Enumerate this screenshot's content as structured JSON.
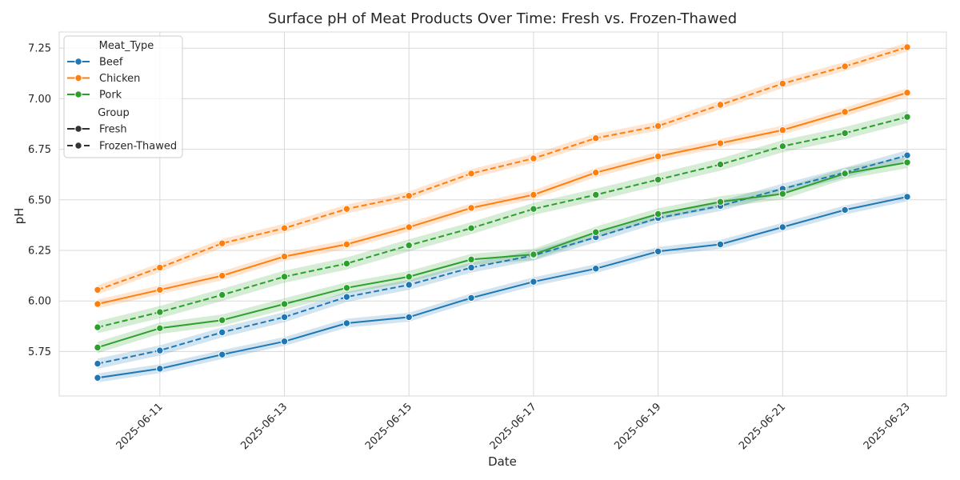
{
  "chart_data": {
    "type": "line",
    "title": "Surface pH of Meat Products Over Time: Fresh vs. Frozen-Thawed",
    "xlabel": "Date",
    "ylabel": "pH",
    "x": [
      "2025-06-10",
      "2025-06-11",
      "2025-06-12",
      "2025-06-13",
      "2025-06-14",
      "2025-06-15",
      "2025-06-16",
      "2025-06-17",
      "2025-06-18",
      "2025-06-19",
      "2025-06-20",
      "2025-06-21",
      "2025-06-22",
      "2025-06-23"
    ],
    "x_tick_labels": [
      "2025-06-11",
      "2025-06-13",
      "2025-06-15",
      "2025-06-17",
      "2025-06-19",
      "2025-06-21",
      "2025-06-23"
    ],
    "ylim": [
      5.53,
      7.33
    ],
    "y_ticks": [
      5.75,
      6.0,
      6.25,
      6.5,
      6.75,
      7.0,
      7.25
    ],
    "y_tick_labels": [
      "5.75",
      "6.00",
      "6.25",
      "6.50",
      "6.75",
      "7.00",
      "7.25"
    ],
    "grid": true,
    "legend": {
      "placement": "top-left",
      "hue_title": "Meat_Type",
      "style_title": "Group",
      "hue_entries": [
        "Beef",
        "Chicken",
        "Pork"
      ],
      "style_entries": [
        "Fresh",
        "Frozen-Thawed"
      ]
    },
    "colors": {
      "Beef": "#1f77b4",
      "Chicken": "#ff7f0e",
      "Pork": "#2ca02c"
    },
    "series": [
      {
        "meat": "Beef",
        "group": "Fresh",
        "values": [
          5.62,
          5.665,
          5.735,
          5.8,
          5.89,
          5.92,
          6.015,
          6.095,
          6.16,
          6.245,
          6.28,
          6.365,
          6.45,
          6.515
        ],
        "band": 0.022
      },
      {
        "meat": "Beef",
        "group": "Frozen-Thawed",
        "values": [
          5.69,
          5.755,
          5.845,
          5.92,
          6.02,
          6.08,
          6.165,
          6.225,
          6.315,
          6.41,
          6.47,
          6.555,
          6.635,
          6.72
        ],
        "band": 0.025
      },
      {
        "meat": "Chicken",
        "group": "Fresh",
        "values": [
          5.985,
          6.055,
          6.125,
          6.22,
          6.28,
          6.365,
          6.46,
          6.525,
          6.635,
          6.715,
          6.78,
          6.845,
          6.935,
          7.03
        ],
        "band": 0.022
      },
      {
        "meat": "Chicken",
        "group": "Frozen-Thawed",
        "values": [
          6.055,
          6.165,
          6.285,
          6.36,
          6.455,
          6.52,
          6.63,
          6.705,
          6.805,
          6.865,
          6.97,
          7.075,
          7.16,
          7.255
        ],
        "band": 0.022
      },
      {
        "meat": "Pork",
        "group": "Fresh",
        "values": [
          5.77,
          5.865,
          5.905,
          5.985,
          6.065,
          6.12,
          6.205,
          6.23,
          6.34,
          6.43,
          6.49,
          6.53,
          6.63,
          6.685
        ],
        "band": 0.028
      },
      {
        "meat": "Pork",
        "group": "Frozen-Thawed",
        "values": [
          5.87,
          5.945,
          6.03,
          6.12,
          6.185,
          6.275,
          6.36,
          6.455,
          6.525,
          6.6,
          6.675,
          6.765,
          6.83,
          6.91
        ],
        "band": 0.03
      }
    ]
  }
}
